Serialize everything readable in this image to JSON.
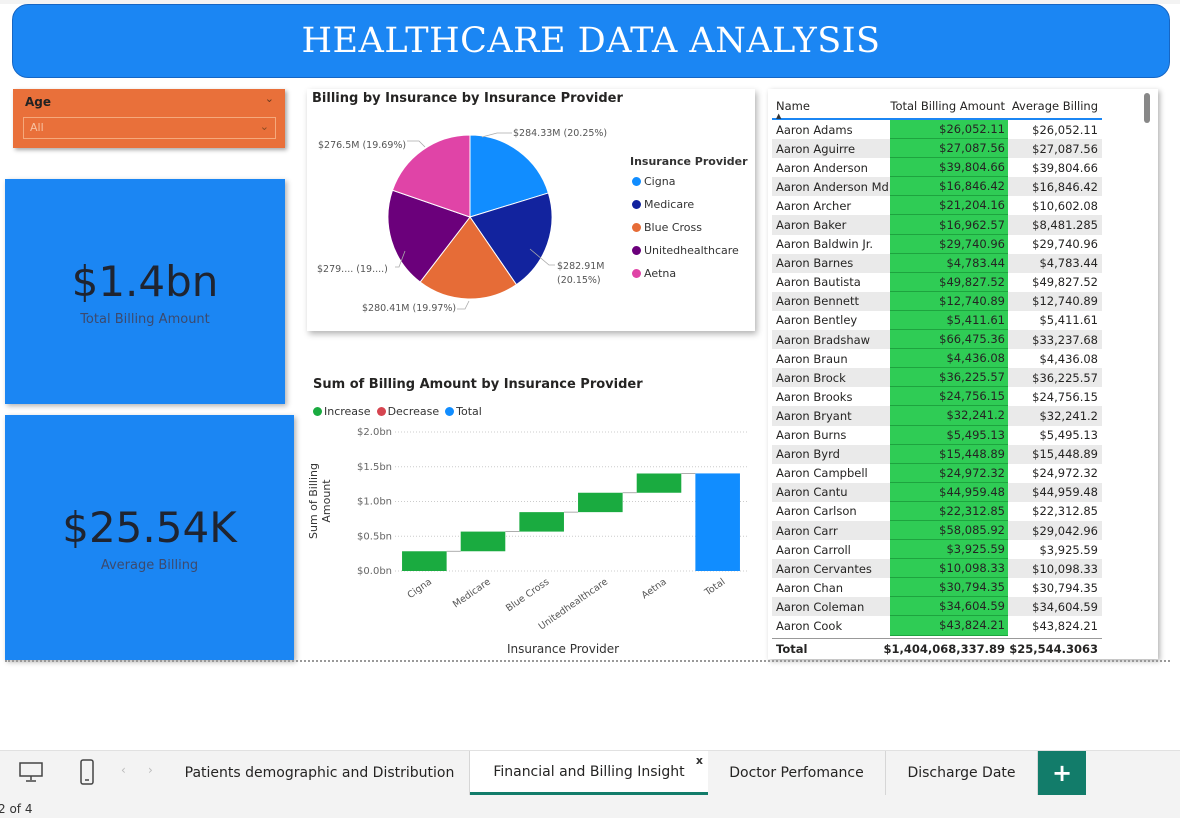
{
  "header": {
    "title": "HEALTHCARE DATA ANALYSIS"
  },
  "slicer": {
    "label": "Age",
    "value": "All"
  },
  "cards": {
    "total_billing": {
      "value": "$1.4bn",
      "label": "Total Billing Amount"
    },
    "average_billing": {
      "value": "$25.54K",
      "label": "Average Billing"
    }
  },
  "pie": {
    "title": "Billing by Insurance by Insurance Provider",
    "legend_title": "Insurance Provider",
    "slice_labels": {
      "cigna": "$284.33M (20.25%)",
      "medicare_a": "$282.91M",
      "medicare_b": "(20.15%)",
      "bluecross": "$280.41M (19.97%)",
      "united": "$279.... (19....)",
      "aetna": "$276.5M (19.69%)"
    }
  },
  "waterfall_titles": {
    "title": "Sum of Billing Amount by Insurance Provider",
    "legend_increase": "Increase",
    "legend_decrease": "Decrease",
    "legend_total": "Total"
  },
  "chart_data": [
    {
      "type": "pie",
      "title": "Billing by Insurance by Insurance Provider",
      "legend_title": "Insurance Provider",
      "categories": [
        "Cigna",
        "Medicare",
        "Blue Cross",
        "Unitedhealthcare",
        "Aetna"
      ],
      "values": [
        284.33,
        282.91,
        280.41,
        279.0,
        276.5
      ],
      "percentages": [
        20.25,
        20.15,
        19.97,
        19.94,
        19.69
      ],
      "unit": "$M",
      "colors": [
        "#118dff",
        "#12239e",
        "#e66c37",
        "#6b007b",
        "#e044a7"
      ],
      "legend_position": "right"
    },
    {
      "type": "bar",
      "subtype": "waterfall",
      "title": "Sum of Billing Amount by Insurance Provider",
      "xlabel": "Insurance Provider",
      "ylabel": "Sum of Billing Amount",
      "categories": [
        "Cigna",
        "Medicare",
        "Blue Cross",
        "Unitedhealthcare",
        "Aetna",
        "Total"
      ],
      "values": [
        0.284,
        0.283,
        0.28,
        0.279,
        0.277,
        1.404
      ],
      "ylim": [
        0,
        2.0
      ],
      "yticks": [
        "$0.0bn",
        "$0.5bn",
        "$1.0bn",
        "$1.5bn",
        "$2.0bn"
      ],
      "ytick_values": [
        0,
        0.5,
        1.0,
        1.5,
        2.0
      ],
      "legend": [
        "Increase",
        "Decrease",
        "Total"
      ],
      "colors": {
        "increase": "#1aab40",
        "decrease": "#d64550",
        "total": "#118dff"
      },
      "grid": true
    }
  ],
  "table": {
    "headers": {
      "name": "Name",
      "total": "Total Billing Amount",
      "avg": "Average Billing"
    },
    "rows": [
      [
        "Aaron Adams",
        "$26,052.11",
        "$26,052.11"
      ],
      [
        "Aaron Aguirre",
        "$27,087.56",
        "$27,087.56"
      ],
      [
        "Aaron Anderson",
        "$39,804.66",
        "$39,804.66"
      ],
      [
        "Aaron Anderson Md",
        "$16,846.42",
        "$16,846.42"
      ],
      [
        "Aaron Archer",
        "$21,204.16",
        "$10,602.08"
      ],
      [
        "Aaron Baker",
        "$16,962.57",
        "$8,481.285"
      ],
      [
        "Aaron Baldwin Jr.",
        "$29,740.96",
        "$29,740.96"
      ],
      [
        "Aaron Barnes",
        "$4,783.44",
        "$4,783.44"
      ],
      [
        "Aaron Bautista",
        "$49,827.52",
        "$49,827.52"
      ],
      [
        "Aaron Bennett",
        "$12,740.89",
        "$12,740.89"
      ],
      [
        "Aaron Bentley",
        "$5,411.61",
        "$5,411.61"
      ],
      [
        "Aaron Bradshaw",
        "$66,475.36",
        "$33,237.68"
      ],
      [
        "Aaron Braun",
        "$4,436.08",
        "$4,436.08"
      ],
      [
        "Aaron Brock",
        "$36,225.57",
        "$36,225.57"
      ],
      [
        "Aaron Brooks",
        "$24,756.15",
        "$24,756.15"
      ],
      [
        "Aaron Bryant",
        "$32,241.2",
        "$32,241.2"
      ],
      [
        "Aaron Burns",
        "$5,495.13",
        "$5,495.13"
      ],
      [
        "Aaron Byrd",
        "$15,448.89",
        "$15,448.89"
      ],
      [
        "Aaron Campbell",
        "$24,972.32",
        "$24,972.32"
      ],
      [
        "Aaron Cantu",
        "$44,959.48",
        "$44,959.48"
      ],
      [
        "Aaron Carlson",
        "$22,312.85",
        "$22,312.85"
      ],
      [
        "Aaron Carr",
        "$58,085.92",
        "$29,042.96"
      ],
      [
        "Aaron Carroll",
        "$3,925.59",
        "$3,925.59"
      ],
      [
        "Aaron Cervantes",
        "$10,098.33",
        "$10,098.33"
      ],
      [
        "Aaron Chan",
        "$30,794.35",
        "$30,794.35"
      ],
      [
        "Aaron Coleman",
        "$34,604.59",
        "$34,604.59"
      ],
      [
        "Aaron Cook",
        "$43,824.21",
        "$43,824.21"
      ]
    ],
    "total": {
      "label": "Total",
      "total": "$1,404,068,337.89",
      "avg": "$25,544.3063"
    },
    "bar_color": "#2fcc55"
  },
  "tabs": [
    {
      "label": "Patients demographic and Distribution",
      "active": false
    },
    {
      "label": "Financial and Billing Insight",
      "active": true
    },
    {
      "label": "Doctor Perfomance",
      "active": false
    },
    {
      "label": "Discharge Date",
      "active": false
    }
  ],
  "tab_close": "x",
  "add_tab": "+",
  "status": {
    "page": "2 of 4"
  },
  "icons": [
    "desktop-view-icon",
    "phone-view-icon",
    "chevron-left-icon",
    "chevron-right-icon",
    "chevron-down-icon",
    "add-icon"
  ]
}
